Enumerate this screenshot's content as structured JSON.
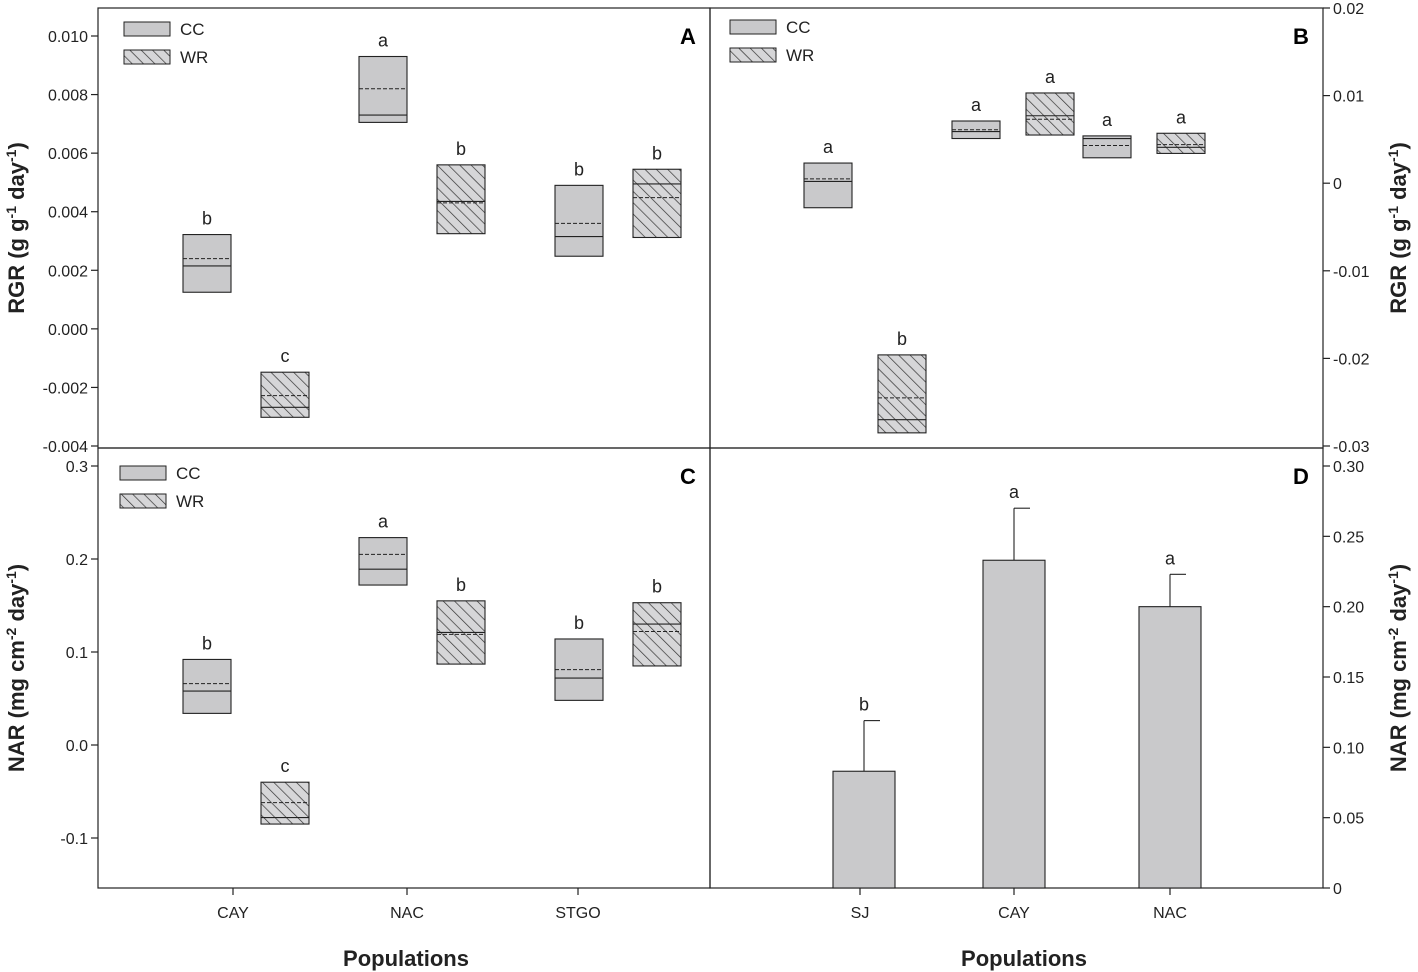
{
  "chart_data": [
    {
      "panel": "A",
      "type": "box",
      "ylabel": "RGR (g g-1 day-1)",
      "ylim": [
        -0.004,
        0.0105
      ],
      "yticks": [
        -0.004,
        -0.002,
        0.0,
        0.002,
        0.004,
        0.006,
        0.008,
        0.01
      ],
      "ytick_labels": [
        "-0.004",
        "-0.002",
        "0.000",
        "0.002",
        "0.004",
        "0.006",
        "0.008",
        "0.010"
      ],
      "categories": [
        "CAY",
        "NAC",
        "STGO"
      ],
      "legend": [
        {
          "key": "CC",
          "label": "CC"
        },
        {
          "key": "WR",
          "label": "WR"
        }
      ],
      "boxes": [
        {
          "category": "CAY",
          "series": "CC",
          "q1": 0.00125,
          "q3": 0.00322,
          "median": 0.00215,
          "mean": 0.0024,
          "label": "b"
        },
        {
          "category": "CAY",
          "series": "WR",
          "q1": -0.00302,
          "q3": -0.00148,
          "median": -0.00268,
          "mean": -0.00228,
          "label": "c"
        },
        {
          "category": "NAC",
          "series": "CC",
          "q1": 0.00705,
          "q3": 0.0093,
          "median": 0.0073,
          "mean": 0.0082,
          "label": "a"
        },
        {
          "category": "NAC",
          "series": "WR",
          "q1": 0.00325,
          "q3": 0.0056,
          "median": 0.00435,
          "mean": 0.0043,
          "label": "b"
        },
        {
          "category": "STGO",
          "series": "CC",
          "q1": 0.00248,
          "q3": 0.0049,
          "median": 0.00315,
          "mean": 0.0036,
          "label": "b"
        },
        {
          "category": "STGO",
          "series": "WR",
          "q1": 0.00312,
          "q3": 0.00545,
          "median": 0.00495,
          "mean": 0.00448,
          "label": "b"
        }
      ]
    },
    {
      "panel": "B",
      "type": "box",
      "ylabel": "RGR (g g-1 day-1)",
      "ylim": [
        -0.03,
        0.02
      ],
      "yticks": [
        -0.03,
        -0.02,
        -0.01,
        0.0,
        0.01,
        0.02
      ],
      "ytick_labels": [
        "-0.03",
        "-0.02",
        "-0.01",
        "0",
        "0.01",
        "0.02"
      ],
      "categories": [
        "SJ",
        "CAY",
        "NAC"
      ],
      "legend": [
        {
          "key": "CC",
          "label": "CC"
        },
        {
          "key": "WR",
          "label": "WR"
        }
      ],
      "boxes": [
        {
          "category": "SJ",
          "series": "CC",
          "q1": -0.0028,
          "q3": 0.0023,
          "median": 0.0002,
          "mean": 0.0005,
          "label": "a"
        },
        {
          "category": "SJ",
          "series": "WR",
          "q1": -0.0285,
          "q3": -0.0196,
          "median": -0.027,
          "mean": -0.0245,
          "label": "b"
        },
        {
          "category": "CAY",
          "series": "CC",
          "q1": 0.0051,
          "q3": 0.0071,
          "median": 0.0059,
          "mean": 0.0061,
          "label": "a"
        },
        {
          "category": "CAY",
          "series": "WR",
          "q1": 0.0055,
          "q3": 0.0103,
          "median": 0.0077,
          "mean": 0.0073,
          "label": "a"
        },
        {
          "category": "NAC",
          "series": "CC",
          "q1": 0.0029,
          "q3": 0.0054,
          "median": 0.0051,
          "mean": 0.0043,
          "label": "a"
        },
        {
          "category": "NAC",
          "series": "WR",
          "q1": 0.0034,
          "q3": 0.0057,
          "median": 0.0041,
          "mean": 0.0044,
          "label": "a"
        }
      ]
    },
    {
      "panel": "C",
      "type": "box",
      "ylabel": "NAR (mg cm-2 day-1)",
      "xlabel": "Populations",
      "ylim": [
        -0.15,
        0.31
      ],
      "yticks": [
        -0.1,
        0.0,
        0.1,
        0.2,
        0.3
      ],
      "ytick_labels": [
        "-0.1",
        "0.0",
        "0.1",
        "0.2",
        "0.3"
      ],
      "categories": [
        "CAY",
        "NAC",
        "STGO"
      ],
      "legend": [
        {
          "key": "CC",
          "label": "CC"
        },
        {
          "key": "WR",
          "label": "WR"
        }
      ],
      "boxes": [
        {
          "category": "CAY",
          "series": "CC",
          "q1": 0.034,
          "q3": 0.092,
          "median": 0.058,
          "mean": 0.066,
          "label": "b"
        },
        {
          "category": "CAY",
          "series": "WR",
          "q1": -0.085,
          "q3": -0.04,
          "median": -0.078,
          "mean": -0.062,
          "label": "c"
        },
        {
          "category": "NAC",
          "series": "CC",
          "q1": 0.172,
          "q3": 0.223,
          "median": 0.189,
          "mean": 0.205,
          "label": "a"
        },
        {
          "category": "NAC",
          "series": "WR",
          "q1": 0.087,
          "q3": 0.155,
          "median": 0.121,
          "mean": 0.119,
          "label": "b"
        },
        {
          "category": "STGO",
          "series": "CC",
          "q1": 0.048,
          "q3": 0.114,
          "median": 0.072,
          "mean": 0.081,
          "label": "b"
        },
        {
          "category": "STGO",
          "series": "WR",
          "q1": 0.085,
          "q3": 0.153,
          "median": 0.13,
          "mean": 0.122,
          "label": "b"
        }
      ]
    },
    {
      "panel": "D",
      "type": "bar",
      "ylabel": "NAR (mg cm-2 day-1)",
      "xlabel": "Populations",
      "ylim": [
        0,
        0.3
      ],
      "yticks": [
        0,
        0.05,
        0.1,
        0.15,
        0.2,
        0.25,
        0.3
      ],
      "ytick_labels": [
        "0",
        "0.05",
        "0.10",
        "0.15",
        "0.20",
        "0.25",
        "0.30"
      ],
      "categories": [
        "SJ",
        "CAY",
        "NAC"
      ],
      "values": [
        0.083,
        0.233,
        0.2
      ],
      "error": [
        0.036,
        0.037,
        0.023
      ],
      "labels": [
        "b",
        "a",
        "a"
      ]
    }
  ],
  "colors": {
    "box_fill": "#c9c9cb",
    "hatch_line": "#333333",
    "axis": "#222222"
  }
}
